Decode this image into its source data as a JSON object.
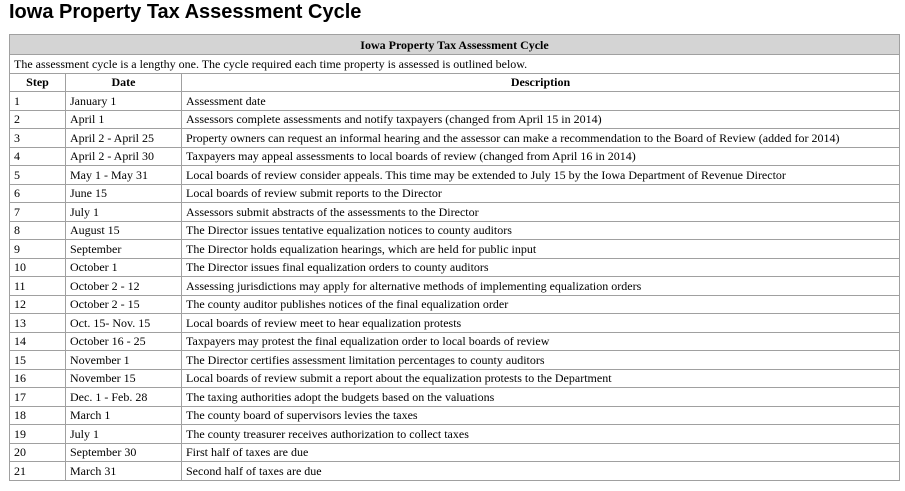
{
  "header": {
    "title": "Iowa Property Tax Assessment Cycle"
  },
  "table": {
    "caption": "Iowa Property Tax Assessment Cycle",
    "intro": "The assessment cycle is a lengthy one. The cycle required each time property is assessed is outlined below.",
    "columns": [
      "Step",
      "Date",
      "Description"
    ],
    "rows": [
      [
        "1",
        "January 1",
        "Assessment date"
      ],
      [
        "2",
        "April 1",
        "Assessors complete assessments and notify taxpayers (changed from April 15 in 2014)"
      ],
      [
        "3",
        "April 2 - April 25",
        "Property owners can request an informal hearing and the assessor can make a recommendation to the Board of Review (added for 2014)"
      ],
      [
        "4",
        "April 2 - April 30",
        "Taxpayers may appeal assessments to local boards of review (changed from April 16 in 2014)"
      ],
      [
        "5",
        "May 1 - May 31",
        "Local boards of review consider appeals. This time may be extended to July 15 by the Iowa Department of Revenue Director"
      ],
      [
        "6",
        "June 15",
        "Local boards of review submit reports to the Director"
      ],
      [
        "7",
        "July 1",
        "Assessors submit abstracts of the assessments to the Director"
      ],
      [
        "8",
        "August 15",
        "The Director issues tentative equalization notices to county auditors"
      ],
      [
        "9",
        "September",
        "The Director holds equalization hearings, which are held for public input"
      ],
      [
        "10",
        "October 1",
        "The Director issues final equalization orders to county auditors"
      ],
      [
        "11",
        "October 2 - 12",
        "Assessing jurisdictions may apply for alternative methods of implementing equalization orders"
      ],
      [
        "12",
        "October 2 - 15",
        "The county auditor publishes notices of the final equalization order"
      ],
      [
        "13",
        "Oct. 15- Nov. 15",
        "Local boards of review meet to hear equalization protests"
      ],
      [
        "14",
        "October 16 - 25",
        "Taxpayers may protest the final equalization order to local boards of review"
      ],
      [
        "15",
        "November 1",
        "The Director certifies assessment limitation percentages to county auditors"
      ],
      [
        "16",
        "November 15",
        "Local boards of review submit a report about the equalization protests to the Department"
      ],
      [
        "17",
        "Dec. 1 - Feb. 28",
        "The taxing authorities adopt the budgets based on the valuations"
      ],
      [
        "18",
        "March 1",
        "The county board of supervisors levies the taxes"
      ],
      [
        "19",
        "July 1",
        "The county treasurer receives authorization to collect taxes"
      ],
      [
        "20",
        "September 30",
        "First half of taxes are due"
      ],
      [
        "21",
        "March 31",
        "Second half of taxes are due"
      ]
    ]
  }
}
